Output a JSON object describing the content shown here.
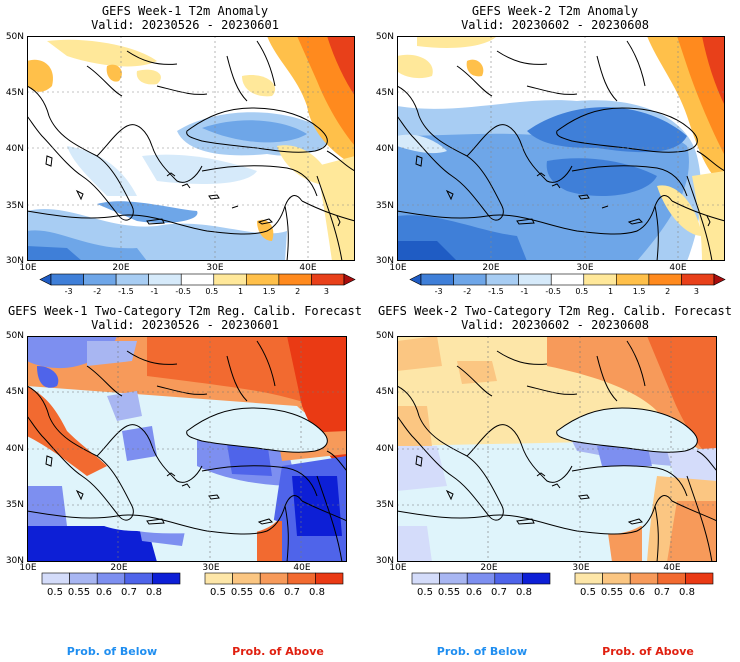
{
  "panels": [
    {
      "title": "GEFS Week-1 T2m Anomaly",
      "valid": "Valid: 20230526 - 20230601"
    },
    {
      "title": "GEFS Week-2 T2m Anomaly",
      "valid": "Valid: 20230602 - 20230608"
    },
    {
      "title": "GEFS Week-1 Two-Category T2m Reg. Calib. Forecast",
      "valid": "Valid: 20230526 - 20230601"
    },
    {
      "title": "GEFS Week-2 Two-Category T2m Reg. Calib. Forecast",
      "valid": "Valid: 20230602 - 20230608"
    }
  ],
  "lat_labels": [
    "50N",
    "45N",
    "40N",
    "35N",
    "30N"
  ],
  "lon_labels": [
    "10E",
    "20E",
    "30E",
    "40E"
  ],
  "anomaly_colorbar": {
    "labels": [
      "-3",
      "-2",
      "-1.5",
      "-1",
      "-0.5",
      "0.5",
      "1",
      "1.5",
      "2",
      "3"
    ],
    "colors": [
      "#1f5cc4",
      "#3f7fd8",
      "#6ea6e8",
      "#a8cdf3",
      "#d6eafa",
      "#ffffff",
      "#ffe89a",
      "#ffc04a",
      "#ff8a1e",
      "#e8401a",
      "#a80e0e"
    ]
  },
  "prob_below_colorbar": {
    "labels": [
      "0.5",
      "0.55",
      "0.6",
      "0.7",
      "0.8"
    ],
    "colors": [
      "#d4dcfa",
      "#a8b6f2",
      "#7d8ff0",
      "#4f64ea",
      "#0d1fd6"
    ]
  },
  "prob_above_colorbar": {
    "labels": [
      "0.5",
      "0.55",
      "0.6",
      "0.7",
      "0.8"
    ],
    "colors": [
      "#fde6a8",
      "#fbc682",
      "#f79a5a",
      "#f26a30",
      "#ea3a14"
    ]
  },
  "footer": {
    "below": "Prob. of Below",
    "above": "Prob. of Above",
    "below_color": "#1f8ef0",
    "above_color": "#e02010"
  },
  "colors": {
    "sea_prob": "#dff4fb",
    "land_neutral": "#ffffff"
  }
}
